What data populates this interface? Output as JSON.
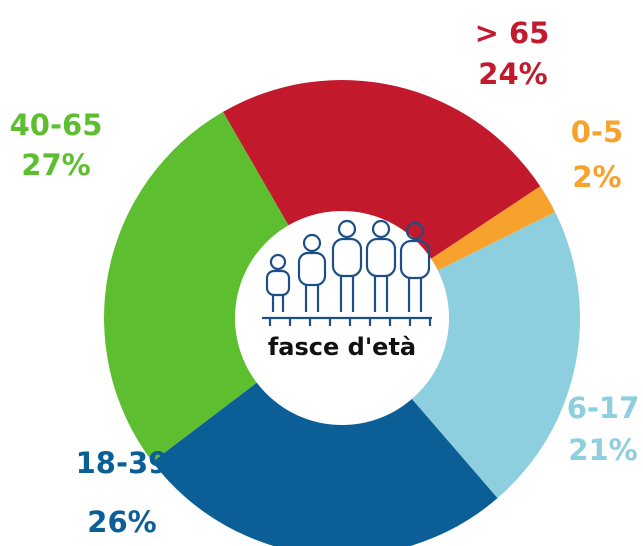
{
  "chart_data": {
    "type": "donut",
    "center_label": "fasce d'età",
    "categories": [
      "> 65",
      "0-5",
      "6-17",
      "18-39",
      "40-65"
    ],
    "values": [
      24,
      2,
      21,
      26,
      27
    ],
    "value_labels": [
      "24%",
      "2%",
      "21%",
      "26%",
      "27%"
    ],
    "colors": [
      "#c2192d",
      "#f7a22c",
      "#8dcfde",
      "#0c5e97",
      "#5dbf2f"
    ]
  }
}
